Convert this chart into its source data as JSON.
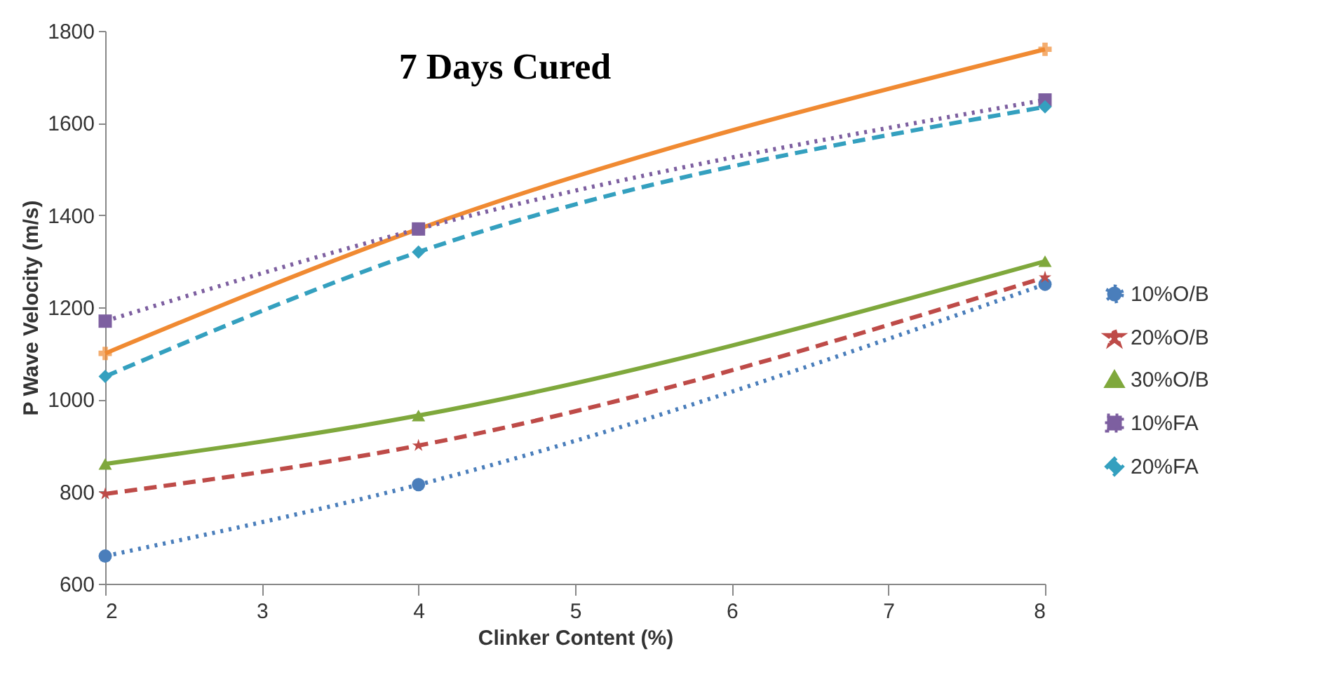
{
  "chart_data": {
    "type": "line",
    "title": "7 Days Cured",
    "xlabel": "Clinker Content (%)",
    "ylabel": "P Wave Velocity (m/s)",
    "x": [
      2,
      4,
      8
    ],
    "series": [
      {
        "name": "10%O/B",
        "color": "#4a7ebb",
        "marker": "circle",
        "line_style": "dotted",
        "values": [
          660,
          815,
          1250
        ]
      },
      {
        "name": "20%O/B",
        "color": "#be4b48",
        "marker": "star",
        "line_style": "dashed",
        "values": [
          795,
          900,
          1265
        ]
      },
      {
        "name": "30%O/B",
        "color": "#7fa83c",
        "marker": "triangle",
        "line_style": "solid",
        "values": [
          860,
          965,
          1300
        ]
      },
      {
        "name": "10%FA",
        "color": "#7d5fa0",
        "marker": "square",
        "line_style": "dotted",
        "values": [
          1170,
          1370,
          1650
        ]
      },
      {
        "name": "20%FA",
        "color": "#34a0bf",
        "marker": "diamond",
        "line_style": "dashed",
        "values": [
          1050,
          1320,
          1635
        ]
      },
      {
        "color": "#f08a32",
        "marker": "cross",
        "line_style": "solid",
        "values": [
          1100,
          1370,
          1760
        ]
      }
    ],
    "xlim": [
      2,
      8
    ],
    "xticks": [
      2,
      3,
      4,
      5,
      6,
      7,
      8
    ],
    "ylim": [
      600,
      1800
    ],
    "yticks": [
      600,
      800,
      1000,
      1200,
      1400,
      1600,
      1800
    ],
    "grid": false,
    "legend": "right"
  }
}
